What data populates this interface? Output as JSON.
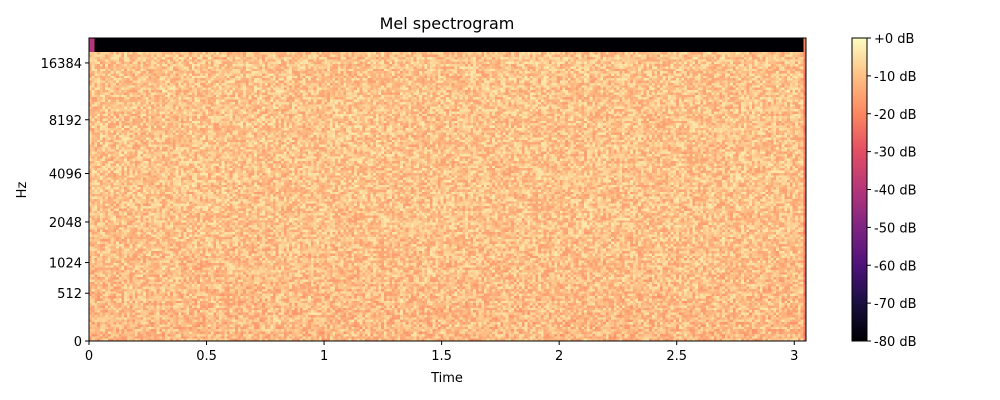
{
  "chart_data": {
    "type": "heatmap",
    "title": "Mel spectrogram",
    "xlabel": "Time",
    "ylabel": "Hz",
    "xlim": [
      0,
      3.05
    ],
    "x_ticks": [
      0,
      0.5,
      1,
      1.5,
      2,
      2.5,
      3
    ],
    "x_tick_labels": [
      "0",
      "0.5",
      "1",
      "1.5",
      "2",
      "2.5",
      "3"
    ],
    "y_scale": "mel",
    "y_ticks": [
      0,
      512,
      1024,
      2048,
      4096,
      8192,
      16384
    ],
    "y_tick_labels": [
      "0",
      "512",
      "1024",
      "2048",
      "4096",
      "8192",
      "16384"
    ],
    "ylim_hz": [
      0,
      22050
    ],
    "colormap": "magma",
    "colorbar": {
      "range_db": [
        -80,
        0
      ],
      "ticks": [
        0,
        -10,
        -20,
        -30,
        -40,
        -50,
        -60,
        -70,
        -80
      ],
      "tick_labels": [
        "+0 dB",
        "-10 dB",
        "-20 dB",
        "-30 dB",
        "-40 dB",
        "-50 dB",
        "-60 dB",
        "-70 dB",
        "-80 dB"
      ]
    },
    "description_values": {
      "bulk_level_db": [
        -20,
        -5
      ],
      "top_band_cutoff_hz": 19000,
      "top_band_level_db": -80,
      "right_edge_level_db": -25
    }
  }
}
